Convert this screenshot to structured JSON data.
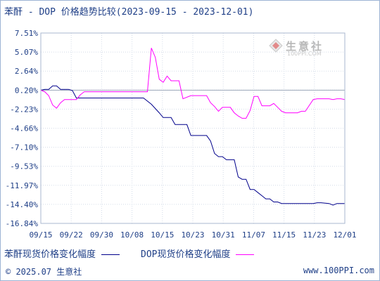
{
  "chart_data": {
    "type": "line",
    "title": "苯酐 - DOP 价格趋势比较(2023-09-15 - 2023-12-01)",
    "y_ticks": [
      "7.51%",
      "5.07%",
      "2.64%",
      "0.20%",
      "-2.23%",
      "-4.66%",
      "-7.10%",
      "-9.53%",
      "-11.97%",
      "-14.40%",
      "-16.84%"
    ],
    "x_ticks": [
      "09/15",
      "09/22",
      "09/30",
      "10/08",
      "10/15",
      "10/23",
      "10/31",
      "11/07",
      "11/15",
      "11/23",
      "12/01"
    ],
    "ylim": [
      -16.84,
      7.51
    ],
    "xlim": [
      0,
      77
    ],
    "reference_line": 0.2,
    "grid": true,
    "series": [
      {
        "name": "苯酐现货价格变化幅度",
        "color": "#00008b",
        "x": [
          0,
          1,
          2,
          3,
          4,
          5,
          7,
          8,
          9,
          10,
          11,
          12,
          14,
          15,
          16,
          17,
          18,
          19,
          20,
          21,
          22,
          24,
          26,
          28,
          30,
          31,
          32,
          33,
          34,
          35,
          37,
          38,
          39,
          40,
          41,
          42,
          43,
          44,
          45,
          46,
          47,
          48,
          49,
          50,
          51,
          52,
          53,
          54,
          55,
          56,
          57,
          58,
          59,
          60,
          61,
          63,
          65,
          67,
          69,
          70,
          71,
          73,
          74,
          75,
          76,
          77
        ],
        "y": [
          0.2,
          0.3,
          0.3,
          0.75,
          0.75,
          0.3,
          0.3,
          0.15,
          -0.8,
          -0.8,
          -0.8,
          -0.8,
          -0.8,
          -0.8,
          -0.8,
          -0.8,
          -0.8,
          -0.8,
          -0.8,
          -0.8,
          -0.8,
          -0.8,
          -0.8,
          -1.6,
          -2.7,
          -3.3,
          -3.3,
          -3.3,
          -4.2,
          -4.2,
          -4.2,
          -5.6,
          -5.6,
          -5.6,
          -5.6,
          -5.6,
          -6.3,
          -7.9,
          -8.3,
          -8.3,
          -8.7,
          -8.7,
          -8.7,
          -10.9,
          -11.2,
          -11.2,
          -12.5,
          -12.5,
          -12.9,
          -13.3,
          -13.7,
          -13.7,
          -14.1,
          -14.1,
          -14.3,
          -14.3,
          -14.3,
          -14.3,
          -14.3,
          -14.2,
          -14.2,
          -14.3,
          -14.5,
          -14.3,
          -14.3,
          -14.3
        ]
      },
      {
        "name": "DOP现货价格变化幅度",
        "color": "#ff00ff",
        "x": [
          0,
          1,
          2,
          3,
          4,
          5,
          6,
          7,
          9,
          10,
          11,
          12,
          14,
          16,
          18,
          19,
          20,
          22,
          24,
          27,
          28,
          29,
          30,
          31,
          32,
          33,
          35,
          36,
          38,
          40,
          41,
          42,
          43,
          44,
          45,
          46,
          47,
          48,
          49,
          50,
          51,
          52,
          53,
          54,
          55,
          56,
          57,
          58,
          59,
          60,
          61,
          62,
          63,
          64,
          65,
          66,
          67,
          69,
          70,
          71,
          72,
          73,
          74,
          75,
          76,
          77
        ],
        "y": [
          0.2,
          0.0,
          -0.5,
          -1.7,
          -2.1,
          -1.4,
          -1.0,
          -1.0,
          -1.0,
          -0.4,
          0.0,
          0.0,
          0.0,
          0.0,
          0.0,
          0.0,
          0.0,
          0.0,
          0.0,
          0.0,
          5.6,
          4.4,
          1.6,
          1.2,
          2.0,
          1.4,
          1.4,
          -0.9,
          -0.5,
          -0.5,
          -0.5,
          -0.5,
          -1.4,
          -1.9,
          -2.5,
          -2.0,
          -2.0,
          -2.0,
          -2.7,
          -3.1,
          -3.4,
          -3.4,
          -2.4,
          -0.6,
          -0.6,
          -1.8,
          -1.8,
          -1.8,
          -1.5,
          -2.0,
          -2.5,
          -2.7,
          -2.7,
          -2.7,
          -2.7,
          -2.5,
          -2.5,
          -1.0,
          -0.9,
          -0.9,
          -0.9,
          -0.9,
          -1.0,
          -0.9,
          -0.9,
          -1.0
        ]
      }
    ]
  },
  "watermark": {
    "brand": "生意社",
    "url": "100PPI.COM"
  },
  "footer": {
    "copyright": "© 2025.07 生意社",
    "site": "www.100PPI.com"
  }
}
